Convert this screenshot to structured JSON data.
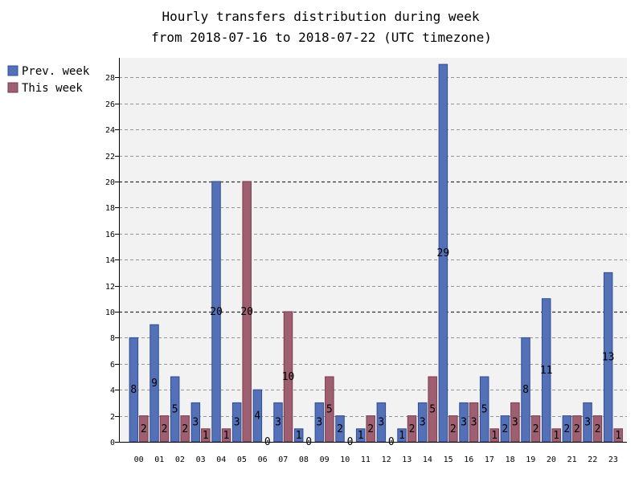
{
  "chart_data": {
    "type": "bar",
    "title": "Hourly transfers distribution during week",
    "subtitle": "from 2018-07-16 to 2018-07-22 (UTC timezone)",
    "xlabel": "",
    "ylabel": "",
    "ylim": [
      0,
      29.5
    ],
    "yticks": [
      0,
      2,
      4,
      6,
      8,
      10,
      12,
      14,
      16,
      18,
      20,
      22,
      24,
      26,
      28
    ],
    "major_gridlines": [
      10,
      20
    ],
    "grid": true,
    "legend_position": "top-left",
    "categories": [
      "00",
      "01",
      "02",
      "03",
      "04",
      "05",
      "06",
      "07",
      "08",
      "09",
      "10",
      "11",
      "12",
      "13",
      "14",
      "15",
      "16",
      "17",
      "18",
      "19",
      "20",
      "21",
      "22",
      "23"
    ],
    "series": [
      {
        "name": "Prev. week",
        "color": "#5470b6",
        "stroke": "#2f4e96",
        "values": [
          8,
          9,
          5,
          3,
          20,
          3,
          4,
          3,
          1,
          3,
          2,
          1,
          3,
          1,
          3,
          29,
          3,
          5,
          2,
          8,
          11,
          2,
          3,
          13
        ]
      },
      {
        "name": "This week",
        "color": "#9e6070",
        "stroke": "#7a3a4c",
        "values": [
          2,
          2,
          2,
          1,
          1,
          20,
          0,
          10,
          0,
          5,
          0,
          2,
          0,
          2,
          5,
          2,
          3,
          1,
          3,
          2,
          1,
          2,
          2,
          1
        ]
      }
    ],
    "plot_background": "#f2f2f2"
  }
}
